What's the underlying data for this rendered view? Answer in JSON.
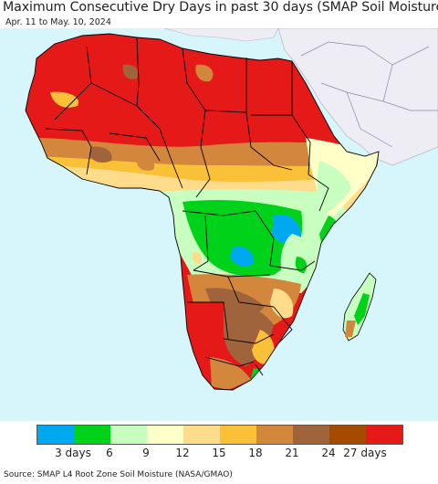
{
  "title": "Maximum Consecutive Dry Days in past 30 days (SMAP Soil Moisture)",
  "subtitle": "Apr. 11 to May. 10, 2024",
  "footer": "Source: SMAP L4 Root Zone Soil Moisture (NASA/GMAO)",
  "legend": {
    "colors": [
      "#00a8f0",
      "#00d21a",
      "#c8ffc0",
      "#ffffc8",
      "#ffdc8c",
      "#fac037",
      "#d2873c",
      "#a0643c",
      "#a54b00",
      "#e61919"
    ],
    "labels": [
      "3 days",
      "6",
      "9",
      "12",
      "15",
      "18",
      "21",
      "24",
      "27 days"
    ]
  },
  "map": {
    "ocean_color": "#d6f6fb",
    "nodata_color": "#efedf4",
    "border_color": "#000000"
  }
}
